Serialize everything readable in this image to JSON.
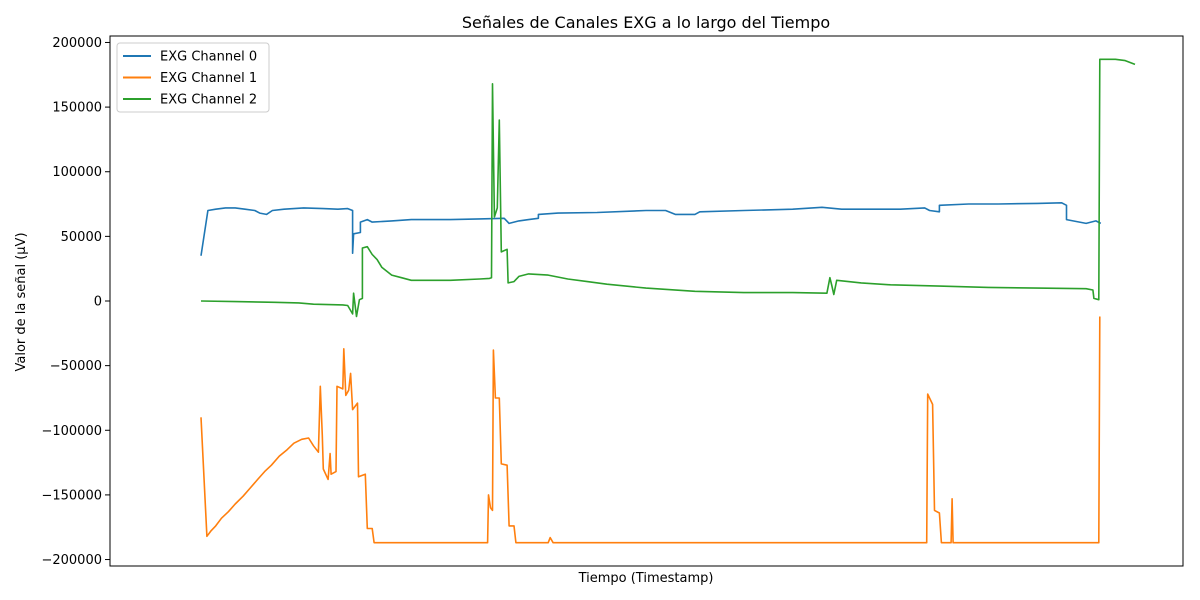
{
  "chart_data": {
    "type": "line",
    "title": "Señales de Canales EXG a lo largo del Tiempo",
    "xlabel": "Tiempo (Timestamp)",
    "ylabel": "Valor de la señal (µV)",
    "ylim": [
      -205000,
      205000
    ],
    "xlim": [
      0,
      1
    ],
    "yticks": [
      -200000,
      -150000,
      -100000,
      -50000,
      0,
      50000,
      100000,
      150000,
      200000
    ],
    "ytick_labels": [
      "−200000",
      "−150000",
      "−100000",
      "−50000",
      "0",
      "50000",
      "100000",
      "150000",
      "200000"
    ],
    "grid": false,
    "legend_position": "upper-left",
    "series": [
      {
        "name": "EXG Channel 0",
        "color": "#1f77b4",
        "points": [
          [
            0.045,
            35000
          ],
          [
            0.052,
            70000
          ],
          [
            0.06,
            71000
          ],
          [
            0.07,
            72000
          ],
          [
            0.08,
            72000
          ],
          [
            0.09,
            71000
          ],
          [
            0.1,
            70000
          ],
          [
            0.105,
            68000
          ],
          [
            0.112,
            67000
          ],
          [
            0.118,
            70000
          ],
          [
            0.13,
            71000
          ],
          [
            0.15,
            72000
          ],
          [
            0.17,
            71500
          ],
          [
            0.185,
            71000
          ],
          [
            0.195,
            71500
          ],
          [
            0.2,
            70000
          ],
          [
            0.2,
            37000
          ],
          [
            0.201,
            52000
          ],
          [
            0.208,
            53000
          ],
          [
            0.208,
            61000
          ],
          [
            0.215,
            63000
          ],
          [
            0.22,
            61000
          ],
          [
            0.24,
            62000
          ],
          [
            0.26,
            63000
          ],
          [
            0.3,
            63000
          ],
          [
            0.33,
            63500
          ],
          [
            0.355,
            64000
          ],
          [
            0.36,
            60000
          ],
          [
            0.37,
            62000
          ],
          [
            0.38,
            63000
          ],
          [
            0.39,
            64000
          ],
          [
            0.39,
            67000
          ],
          [
            0.41,
            68000
          ],
          [
            0.45,
            68500
          ],
          [
            0.5,
            70000
          ],
          [
            0.52,
            70000
          ],
          [
            0.53,
            67000
          ],
          [
            0.55,
            67000
          ],
          [
            0.555,
            69000
          ],
          [
            0.6,
            70000
          ],
          [
            0.65,
            71000
          ],
          [
            0.68,
            72500
          ],
          [
            0.7,
            71000
          ],
          [
            0.73,
            71000
          ],
          [
            0.76,
            71000
          ],
          [
            0.785,
            72000
          ],
          [
            0.79,
            70000
          ],
          [
            0.8,
            69000
          ],
          [
            0.8,
            74000
          ],
          [
            0.83,
            75000
          ],
          [
            0.86,
            75000
          ],
          [
            0.9,
            75500
          ],
          [
            0.925,
            76000
          ],
          [
            0.93,
            74000
          ],
          [
            0.93,
            63000
          ],
          [
            0.95,
            60000
          ],
          [
            0.96,
            62000
          ],
          [
            0.965,
            60000
          ]
        ]
      },
      {
        "name": "EXG Channel 1",
        "color": "#ff7f0e",
        "points": [
          [
            0.045,
            -90000
          ],
          [
            0.051,
            -182000
          ],
          [
            0.055,
            -178000
          ],
          [
            0.06,
            -174000
          ],
          [
            0.066,
            -168000
          ],
          [
            0.073,
            -163000
          ],
          [
            0.08,
            -157000
          ],
          [
            0.088,
            -151000
          ],
          [
            0.095,
            -145000
          ],
          [
            0.103,
            -138000
          ],
          [
            0.11,
            -132000
          ],
          [
            0.117,
            -127000
          ],
          [
            0.125,
            -120000
          ],
          [
            0.133,
            -115000
          ],
          [
            0.14,
            -110000
          ],
          [
            0.148,
            -107000
          ],
          [
            0.155,
            -106000
          ],
          [
            0.16,
            -112000
          ],
          [
            0.165,
            -117000
          ],
          [
            0.167,
            -66000
          ],
          [
            0.169,
            -104000
          ],
          [
            0.17,
            -130000
          ],
          [
            0.175,
            -138000
          ],
          [
            0.177,
            -118000
          ],
          [
            0.178,
            -134000
          ],
          [
            0.183,
            -132000
          ],
          [
            0.184,
            -66000
          ],
          [
            0.19,
            -68000
          ],
          [
            0.191,
            -37000
          ],
          [
            0.193,
            -73000
          ],
          [
            0.196,
            -69000
          ],
          [
            0.198,
            -56000
          ],
          [
            0.2,
            -84000
          ],
          [
            0.205,
            -79000
          ],
          [
            0.206,
            -136000
          ],
          [
            0.213,
            -134000
          ],
          [
            0.215,
            -176000
          ],
          [
            0.22,
            -176000
          ],
          [
            0.222,
            -187000
          ],
          [
            0.3,
            -187000
          ],
          [
            0.338,
            -187000
          ],
          [
            0.339,
            -150000
          ],
          [
            0.341,
            -160000
          ],
          [
            0.343,
            -162000
          ],
          [
            0.344,
            -38000
          ],
          [
            0.346,
            -75000
          ],
          [
            0.35,
            -75000
          ],
          [
            0.352,
            -126000
          ],
          [
            0.358,
            -127000
          ],
          [
            0.36,
            -174000
          ],
          [
            0.365,
            -174000
          ],
          [
            0.367,
            -187000
          ],
          [
            0.4,
            -187000
          ],
          [
            0.402,
            -183000
          ],
          [
            0.405,
            -187000
          ],
          [
            0.5,
            -187000
          ],
          [
            0.6,
            -187000
          ],
          [
            0.7,
            -187000
          ],
          [
            0.787,
            -187000
          ],
          [
            0.788,
            -72000
          ],
          [
            0.793,
            -80000
          ],
          [
            0.795,
            -162000
          ],
          [
            0.8,
            -164000
          ],
          [
            0.802,
            -187000
          ],
          [
            0.812,
            -187000
          ],
          [
            0.813,
            -153000
          ],
          [
            0.814,
            -187000
          ],
          [
            0.9,
            -187000
          ],
          [
            0.963,
            -187000
          ],
          [
            0.964,
            -12000
          ]
        ]
      },
      {
        "name": "EXG Channel 2",
        "color": "#2ca02c",
        "points": [
          [
            0.045,
            0
          ],
          [
            0.08,
            -500
          ],
          [
            0.12,
            -1000
          ],
          [
            0.145,
            -1500
          ],
          [
            0.16,
            -2500
          ],
          [
            0.19,
            -3000
          ],
          [
            0.195,
            -3500
          ],
          [
            0.2,
            -10000
          ],
          [
            0.201,
            6000
          ],
          [
            0.204,
            -12000
          ],
          [
            0.207,
            1000
          ],
          [
            0.21,
            2000
          ],
          [
            0.21,
            41000
          ],
          [
            0.215,
            42000
          ],
          [
            0.22,
            36000
          ],
          [
            0.225,
            32000
          ],
          [
            0.23,
            26000
          ],
          [
            0.235,
            23000
          ],
          [
            0.24,
            20000
          ],
          [
            0.25,
            18000
          ],
          [
            0.26,
            16000
          ],
          [
            0.3,
            16000
          ],
          [
            0.33,
            17000
          ],
          [
            0.34,
            17500
          ],
          [
            0.342,
            18000
          ],
          [
            0.343,
            168000
          ],
          [
            0.345,
            65000
          ],
          [
            0.348,
            72000
          ],
          [
            0.35,
            140000
          ],
          [
            0.352,
            38000
          ],
          [
            0.358,
            40000
          ],
          [
            0.359,
            14000
          ],
          [
            0.365,
            15000
          ],
          [
            0.37,
            19000
          ],
          [
            0.38,
            21000
          ],
          [
            0.4,
            20000
          ],
          [
            0.42,
            17000
          ],
          [
            0.44,
            15000
          ],
          [
            0.46,
            13000
          ],
          [
            0.5,
            10000
          ],
          [
            0.55,
            7500
          ],
          [
            0.6,
            6500
          ],
          [
            0.65,
            6500
          ],
          [
            0.685,
            6000
          ],
          [
            0.688,
            18000
          ],
          [
            0.69,
            12000
          ],
          [
            0.692,
            5000
          ],
          [
            0.695,
            16000
          ],
          [
            0.72,
            14000
          ],
          [
            0.75,
            12500
          ],
          [
            0.8,
            11500
          ],
          [
            0.85,
            10500
          ],
          [
            0.9,
            10000
          ],
          [
            0.95,
            9500
          ],
          [
            0.957,
            8500
          ],
          [
            0.958,
            2000
          ],
          [
            0.963,
            1000
          ],
          [
            0.964,
            187000
          ],
          [
            0.98,
            187000
          ],
          [
            0.99,
            186000
          ],
          [
            1.0,
            183000
          ]
        ]
      }
    ]
  }
}
